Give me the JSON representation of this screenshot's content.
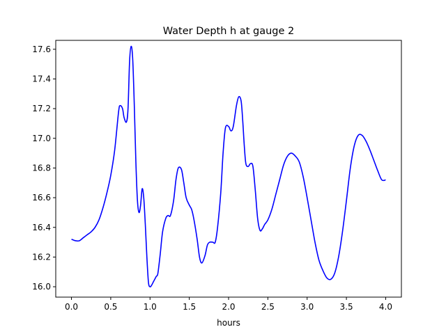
{
  "chart_data": {
    "type": "line",
    "title": "Water Depth h at gauge 2",
    "xlabel": "hours",
    "ylabel": "",
    "xlim": [
      -0.2,
      4.2
    ],
    "ylim": [
      15.93,
      17.66
    ],
    "xticks": [
      0.0,
      0.5,
      1.0,
      1.5,
      2.0,
      2.5,
      3.0,
      3.5,
      4.0
    ],
    "xtick_labels": [
      "0.0",
      "0.5",
      "1.0",
      "1.5",
      "2.0",
      "2.5",
      "3.0",
      "3.5",
      "4.0"
    ],
    "yticks": [
      16.0,
      16.2,
      16.4,
      16.6,
      16.8,
      17.0,
      17.2,
      17.4,
      17.6
    ],
    "ytick_labels": [
      "16.0",
      "16.2",
      "16.4",
      "16.6",
      "16.8",
      "17.0",
      "17.2",
      "17.4",
      "17.6"
    ],
    "grid": false,
    "series": [
      {
        "color": "#0000ff",
        "x": [
          0.0,
          0.05,
          0.1,
          0.15,
          0.2,
          0.25,
          0.3,
          0.35,
          0.4,
          0.45,
          0.5,
          0.55,
          0.6,
          0.62,
          0.65,
          0.67,
          0.7,
          0.72,
          0.74,
          0.76,
          0.78,
          0.8,
          0.82,
          0.84,
          0.86,
          0.88,
          0.9,
          0.92,
          0.94,
          0.96,
          0.98,
          1.0,
          1.02,
          1.04,
          1.06,
          1.08,
          1.1,
          1.13,
          1.16,
          1.2,
          1.23,
          1.26,
          1.3,
          1.33,
          1.36,
          1.4,
          1.43,
          1.46,
          1.5,
          1.53,
          1.56,
          1.6,
          1.63,
          1.66,
          1.7,
          1.73,
          1.76,
          1.8,
          1.83,
          1.86,
          1.9,
          1.93,
          1.96,
          2.0,
          2.03,
          2.06,
          2.1,
          2.13,
          2.16,
          2.18,
          2.2,
          2.22,
          2.25,
          2.28,
          2.31,
          2.34,
          2.37,
          2.4,
          2.43,
          2.46,
          2.5,
          2.55,
          2.6,
          2.65,
          2.7,
          2.75,
          2.8,
          2.85,
          2.9,
          2.95,
          3.0,
          3.05,
          3.1,
          3.15,
          3.2,
          3.25,
          3.3,
          3.35,
          3.4,
          3.45,
          3.5,
          3.55,
          3.6,
          3.65,
          3.7,
          3.75,
          3.8,
          3.85,
          3.9,
          3.95,
          4.0
        ],
        "y": [
          16.32,
          16.31,
          16.31,
          16.33,
          16.35,
          16.37,
          16.4,
          16.45,
          16.53,
          16.63,
          16.75,
          16.92,
          17.18,
          17.22,
          17.2,
          17.14,
          17.11,
          17.2,
          17.52,
          17.62,
          17.53,
          17.22,
          16.84,
          16.58,
          16.5,
          16.55,
          16.66,
          16.6,
          16.42,
          16.2,
          16.03,
          16.0,
          16.01,
          16.03,
          16.05,
          16.07,
          16.09,
          16.22,
          16.37,
          16.46,
          16.48,
          16.48,
          16.58,
          16.72,
          16.8,
          16.79,
          16.7,
          16.6,
          16.55,
          16.52,
          16.45,
          16.32,
          16.2,
          16.16,
          16.21,
          16.28,
          16.3,
          16.3,
          16.3,
          16.4,
          16.63,
          16.9,
          17.07,
          17.08,
          17.05,
          17.08,
          17.22,
          17.28,
          17.25,
          17.12,
          16.95,
          16.83,
          16.81,
          16.83,
          16.81,
          16.65,
          16.46,
          16.38,
          16.39,
          16.42,
          16.45,
          16.52,
          16.62,
          16.72,
          16.82,
          16.88,
          16.9,
          16.88,
          16.84,
          16.74,
          16.6,
          16.45,
          16.3,
          16.18,
          16.11,
          16.06,
          16.05,
          16.09,
          16.2,
          16.37,
          16.58,
          16.8,
          16.95,
          17.02,
          17.02,
          16.98,
          16.92,
          16.85,
          16.78,
          16.72,
          16.72
        ]
      }
    ]
  }
}
